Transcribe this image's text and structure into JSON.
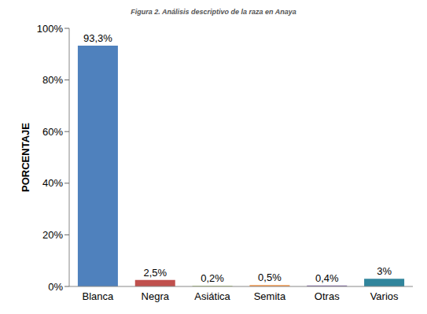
{
  "chart_data": {
    "type": "bar",
    "title": "Figura 2. Análisis descriptivo de la raza en Anaya",
    "y_label": "PORCENTAJE",
    "categories": [
      "Blanca",
      "Negra",
      "Asiática",
      "Semita",
      "Otras",
      "Varios"
    ],
    "values": [
      93.3,
      2.5,
      0.2,
      0.5,
      0.4,
      3
    ],
    "value_labels": [
      "93,3%",
      "2,5%",
      "0,2%",
      "0,5%",
      "0,4%",
      "3%"
    ],
    "colors": [
      "#4f81bd",
      "#c0504d",
      "#9bbb59",
      "#f79646",
      "#8064a2",
      "#31859c"
    ],
    "ylim": [
      0,
      100
    ],
    "yticks": [
      {
        "value": 0,
        "label": "0%"
      },
      {
        "value": 20,
        "label": "20%"
      },
      {
        "value": 40,
        "label": "40%"
      },
      {
        "value": 60,
        "label": "60%"
      },
      {
        "value": 80,
        "label": "80%"
      },
      {
        "value": 100,
        "label": "100%"
      }
    ],
    "grid": false,
    "data_labels": true
  }
}
